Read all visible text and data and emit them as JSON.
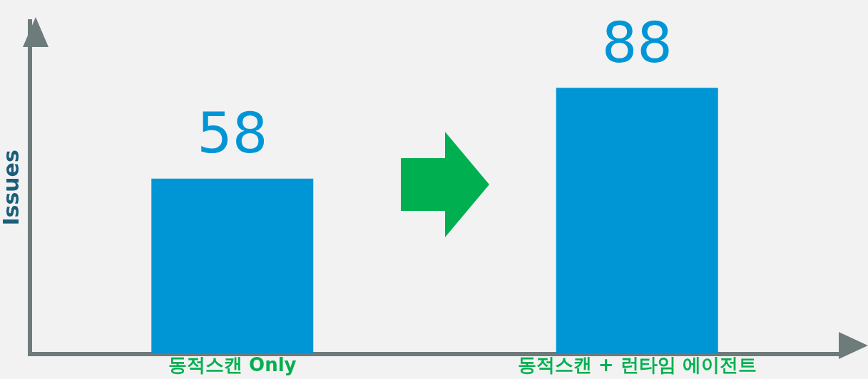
{
  "chart_data": {
    "type": "bar",
    "ylabel": "Issues",
    "categories": [
      "동적스캔 Only",
      "동적스캔 + 런타임 에이전트"
    ],
    "values": [
      58,
      88
    ],
    "color": "#0096d6",
    "ylim": [
      0,
      110
    ],
    "tick_labels": "x",
    "grid": false,
    "legend": false,
    "data_labels": true
  }
}
